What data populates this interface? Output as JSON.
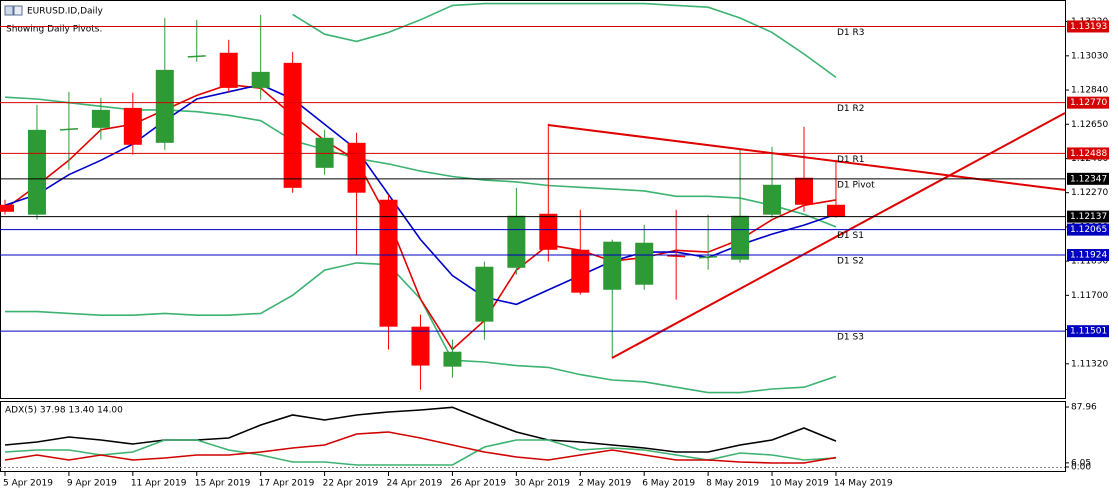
{
  "chart_data": [
    {
      "type": "candlestick",
      "title": "EURUSD.ID,Daily",
      "subtitle": "Showing Daily Pivots.",
      "categories": [
        "5 Apr 2019",
        null,
        "9 Apr 2019",
        null,
        "11 Apr 2019",
        null,
        "15 Apr 2019",
        null,
        "17 Apr 2019",
        null,
        "22 Apr 2019",
        null,
        "24 Apr 2019",
        null,
        "26 Apr 2019",
        null,
        "30 Apr 2019",
        null,
        "2 May 2019",
        null,
        "6 May 2019",
        null,
        "8 May 2019",
        null,
        "10 May 2019",
        null,
        "14 May 2019"
      ],
      "open": [
        1.12203,
        1.12148,
        1.12619,
        1.1263,
        1.12741,
        1.12547,
        1.13024,
        1.13047,
        1.12852,
        1.12991,
        1.12408,
        1.12547,
        1.12231,
        1.11526,
        1.11304,
        1.11554,
        1.11853,
        1.12153,
        1.11953,
        1.11731,
        1.11759,
        1.1192,
        1.11909,
        1.11898,
        1.12148,
        1.12353,
        1.12203
      ],
      "high": [
        1.12231,
        1.12758,
        1.1283,
        1.12797,
        1.12825,
        1.13241,
        1.1323,
        1.13119,
        1.13258,
        1.13052,
        1.12619,
        1.12603,
        1.12259,
        1.11593,
        1.11454,
        1.11887,
        1.12297,
        1.12653,
        1.12175,
        1.12009,
        1.12092,
        1.12175,
        1.12148,
        1.12508,
        1.12525,
        1.12636,
        1.12453
      ],
      "low": [
        1.12148,
        1.1212,
        1.12397,
        1.12564,
        1.12481,
        1.12508,
        1.12997,
        1.1283,
        1.12786,
        1.1227,
        1.1237,
        1.11926,
        1.11399,
        1.11176,
        1.11243,
        1.11454,
        1.11815,
        1.11887,
        1.11704,
        1.11354,
        1.11731,
        1.11676,
        1.11842,
        1.11881,
        1.12131,
        1.12164,
        1.12131
      ],
      "close": [
        1.12164,
        1.12619,
        1.12625,
        1.1273,
        1.12536,
        1.12952,
        1.1303,
        1.12852,
        1.12941,
        1.12297,
        1.12575,
        1.1227,
        1.11526,
        1.1131,
        1.11387,
        1.11859,
        1.12142,
        1.11953,
        1.11715,
        1.11998,
        1.11992,
        1.11915,
        1.11915,
        1.12142,
        1.12314,
        1.12203,
        1.12137
      ],
      "up_color": "#2e9a36",
      "down_color": "#ff0000",
      "series": [
        {
          "color": "#3cb371",
          "values": [
            1.128,
            1.1279,
            1.1277,
            1.1275,
            1.1273,
            1.1273,
            1.1272,
            1.127,
            1.1267,
            1.1256,
            1.1251,
            1.1246,
            1.1243,
            1.1239,
            1.1236,
            1.1234,
            1.1233,
            1.1231,
            1.123,
            1.1229,
            1.1228,
            1.1225,
            1.1225,
            1.1224,
            1.122,
            1.1215,
            1.1208
          ]
        },
        {
          "color": "#3cb371",
          "values": [
            null,
            null,
            null,
            null,
            null,
            null,
            null,
            null,
            null,
            1.1326,
            1.1315,
            1.1311,
            1.1316,
            1.1323,
            1.1331,
            1.1332,
            1.1332,
            1.1332,
            1.1332,
            1.1332,
            1.1332,
            1.1331,
            1.133,
            1.1324,
            1.1316,
            1.1304,
            1.1291
          ]
        },
        {
          "color": "#3cb371",
          "values": [
            1.1161,
            1.1161,
            1.116,
            1.1159,
            1.1159,
            1.116,
            1.1159,
            1.1159,
            1.116,
            1.117,
            1.1184,
            1.1188,
            1.1187,
            1.1168,
            1.1134,
            1.1133,
            1.1131,
            1.113,
            1.1126,
            1.1123,
            1.1122,
            1.1119,
            1.1116,
            1.1116,
            1.1118,
            1.1119,
            1.1125
          ]
        },
        {
          "color": "#e00000",
          "values": [
            1.1218,
            1.1231,
            1.1245,
            1.1262,
            1.1265,
            1.1273,
            1.1281,
            1.1287,
            1.1285,
            1.127,
            1.1256,
            1.1245,
            1.1212,
            1.1168,
            1.114,
            1.1156,
            1.1184,
            1.1198,
            1.1195,
            1.1189,
            1.1191,
            1.1195,
            1.1194,
            1.1201,
            1.1212,
            1.122,
            1.1223
          ]
        },
        {
          "color": "#0000cc",
          "values": [
            1.122,
            1.1226,
            1.1237,
            1.1245,
            1.1254,
            1.1267,
            1.1279,
            1.1283,
            1.1287,
            1.1279,
            1.1265,
            1.1251,
            1.1226,
            1.1201,
            1.1181,
            1.1169,
            1.1165,
            1.1173,
            1.1181,
            1.1189,
            1.1194,
            1.1194,
            1.1191,
            1.1198,
            1.1204,
            1.1209,
            1.1215
          ]
        }
      ],
      "pivots": [
        {
          "label": "D1 R3",
          "value": 1.13193,
          "value_label": "1.13193",
          "color": "#d40000"
        },
        {
          "label": "D1 R2",
          "value": 1.1277,
          "value_label": "1.12770",
          "color": "#d40000"
        },
        {
          "label": "D1 R1",
          "value": 1.12488,
          "value_label": "1.12488",
          "color": "#d40000"
        },
        {
          "label": "D1 Pivot",
          "value": 1.12347,
          "value_label": "1.12347",
          "color": "#000000"
        },
        {
          "label": "D1 S1",
          "value": 1.12065,
          "value_label": "1.12065",
          "color": "#0000c0"
        },
        {
          "label": "D1 S2",
          "value": 1.11924,
          "value_label": "1.11924",
          "color": "#0000c0"
        },
        {
          "label": "D1 S3",
          "value": 1.11501,
          "value_label": "1.11501",
          "color": "#0000c0"
        }
      ],
      "last_price": 1.12137,
      "ylim": [
        1.1113,
        1.1334
      ],
      "yticks": [
        {
          "value": 1.1322,
          "label": "1.13220"
        },
        {
          "value": 1.1303,
          "label": "1.13030"
        },
        {
          "value": 1.1284,
          "label": "1.12840"
        },
        {
          "value": 1.1265,
          "label": "1.12650"
        },
        {
          "value": 1.1246,
          "label": "1.12460"
        },
        {
          "value": 1.1227,
          "label": "1.12270"
        },
        {
          "value": 1.1208,
          "label": "1.12080"
        },
        {
          "value": 1.1189,
          "label": "1.11890"
        },
        {
          "value": 1.117,
          "label": "1.11700"
        },
        {
          "value": 1.1151,
          "label": "1.11510"
        },
        {
          "value": 1.1132,
          "label": "1.11320"
        }
      ]
    },
    {
      "type": "line",
      "title": "ADX(5) 37.98 13.40 14.00",
      "series": [
        {
          "color": "#000000",
          "values": [
            32.3,
            36.6,
            44.0,
            39.6,
            33.7,
            39.6,
            39.6,
            42.5,
            61.6,
            76.2,
            68.9,
            76.2,
            80.6,
            83.6,
            87.5,
            68.9,
            51.3,
            39.6,
            36.6,
            32.3,
            27.9,
            22.0,
            22.0,
            32.3,
            39.6,
            57.2,
            37.98
          ]
        },
        {
          "color": "#3cb371",
          "values": [
            22.0,
            24.9,
            24.9,
            17.6,
            22.0,
            39.6,
            39.6,
            24.9,
            17.6,
            7.3,
            7.3,
            2.9,
            2.9,
            2.9,
            2.9,
            29.3,
            39.6,
            39.6,
            24.9,
            27.9,
            24.9,
            17.6,
            10.3,
            20.5,
            17.6,
            10.3,
            13.4
          ]
        },
        {
          "color": "#d00000",
          "values": [
            10.3,
            17.6,
            10.3,
            17.6,
            10.3,
            13.2,
            17.6,
            17.6,
            22.0,
            27.9,
            32.3,
            48.4,
            51.3,
            42.5,
            32.3,
            22.0,
            14.7,
            10.3,
            17.6,
            24.9,
            17.6,
            10.3,
            10.3,
            7.3,
            5.9,
            5.9,
            14.0
          ]
        }
      ],
      "ylim": [
        0,
        87.96
      ],
      "yticks": [
        87.96,
        6.05,
        {
          "value": 0,
          "label": "0.00"
        }
      ]
    }
  ]
}
